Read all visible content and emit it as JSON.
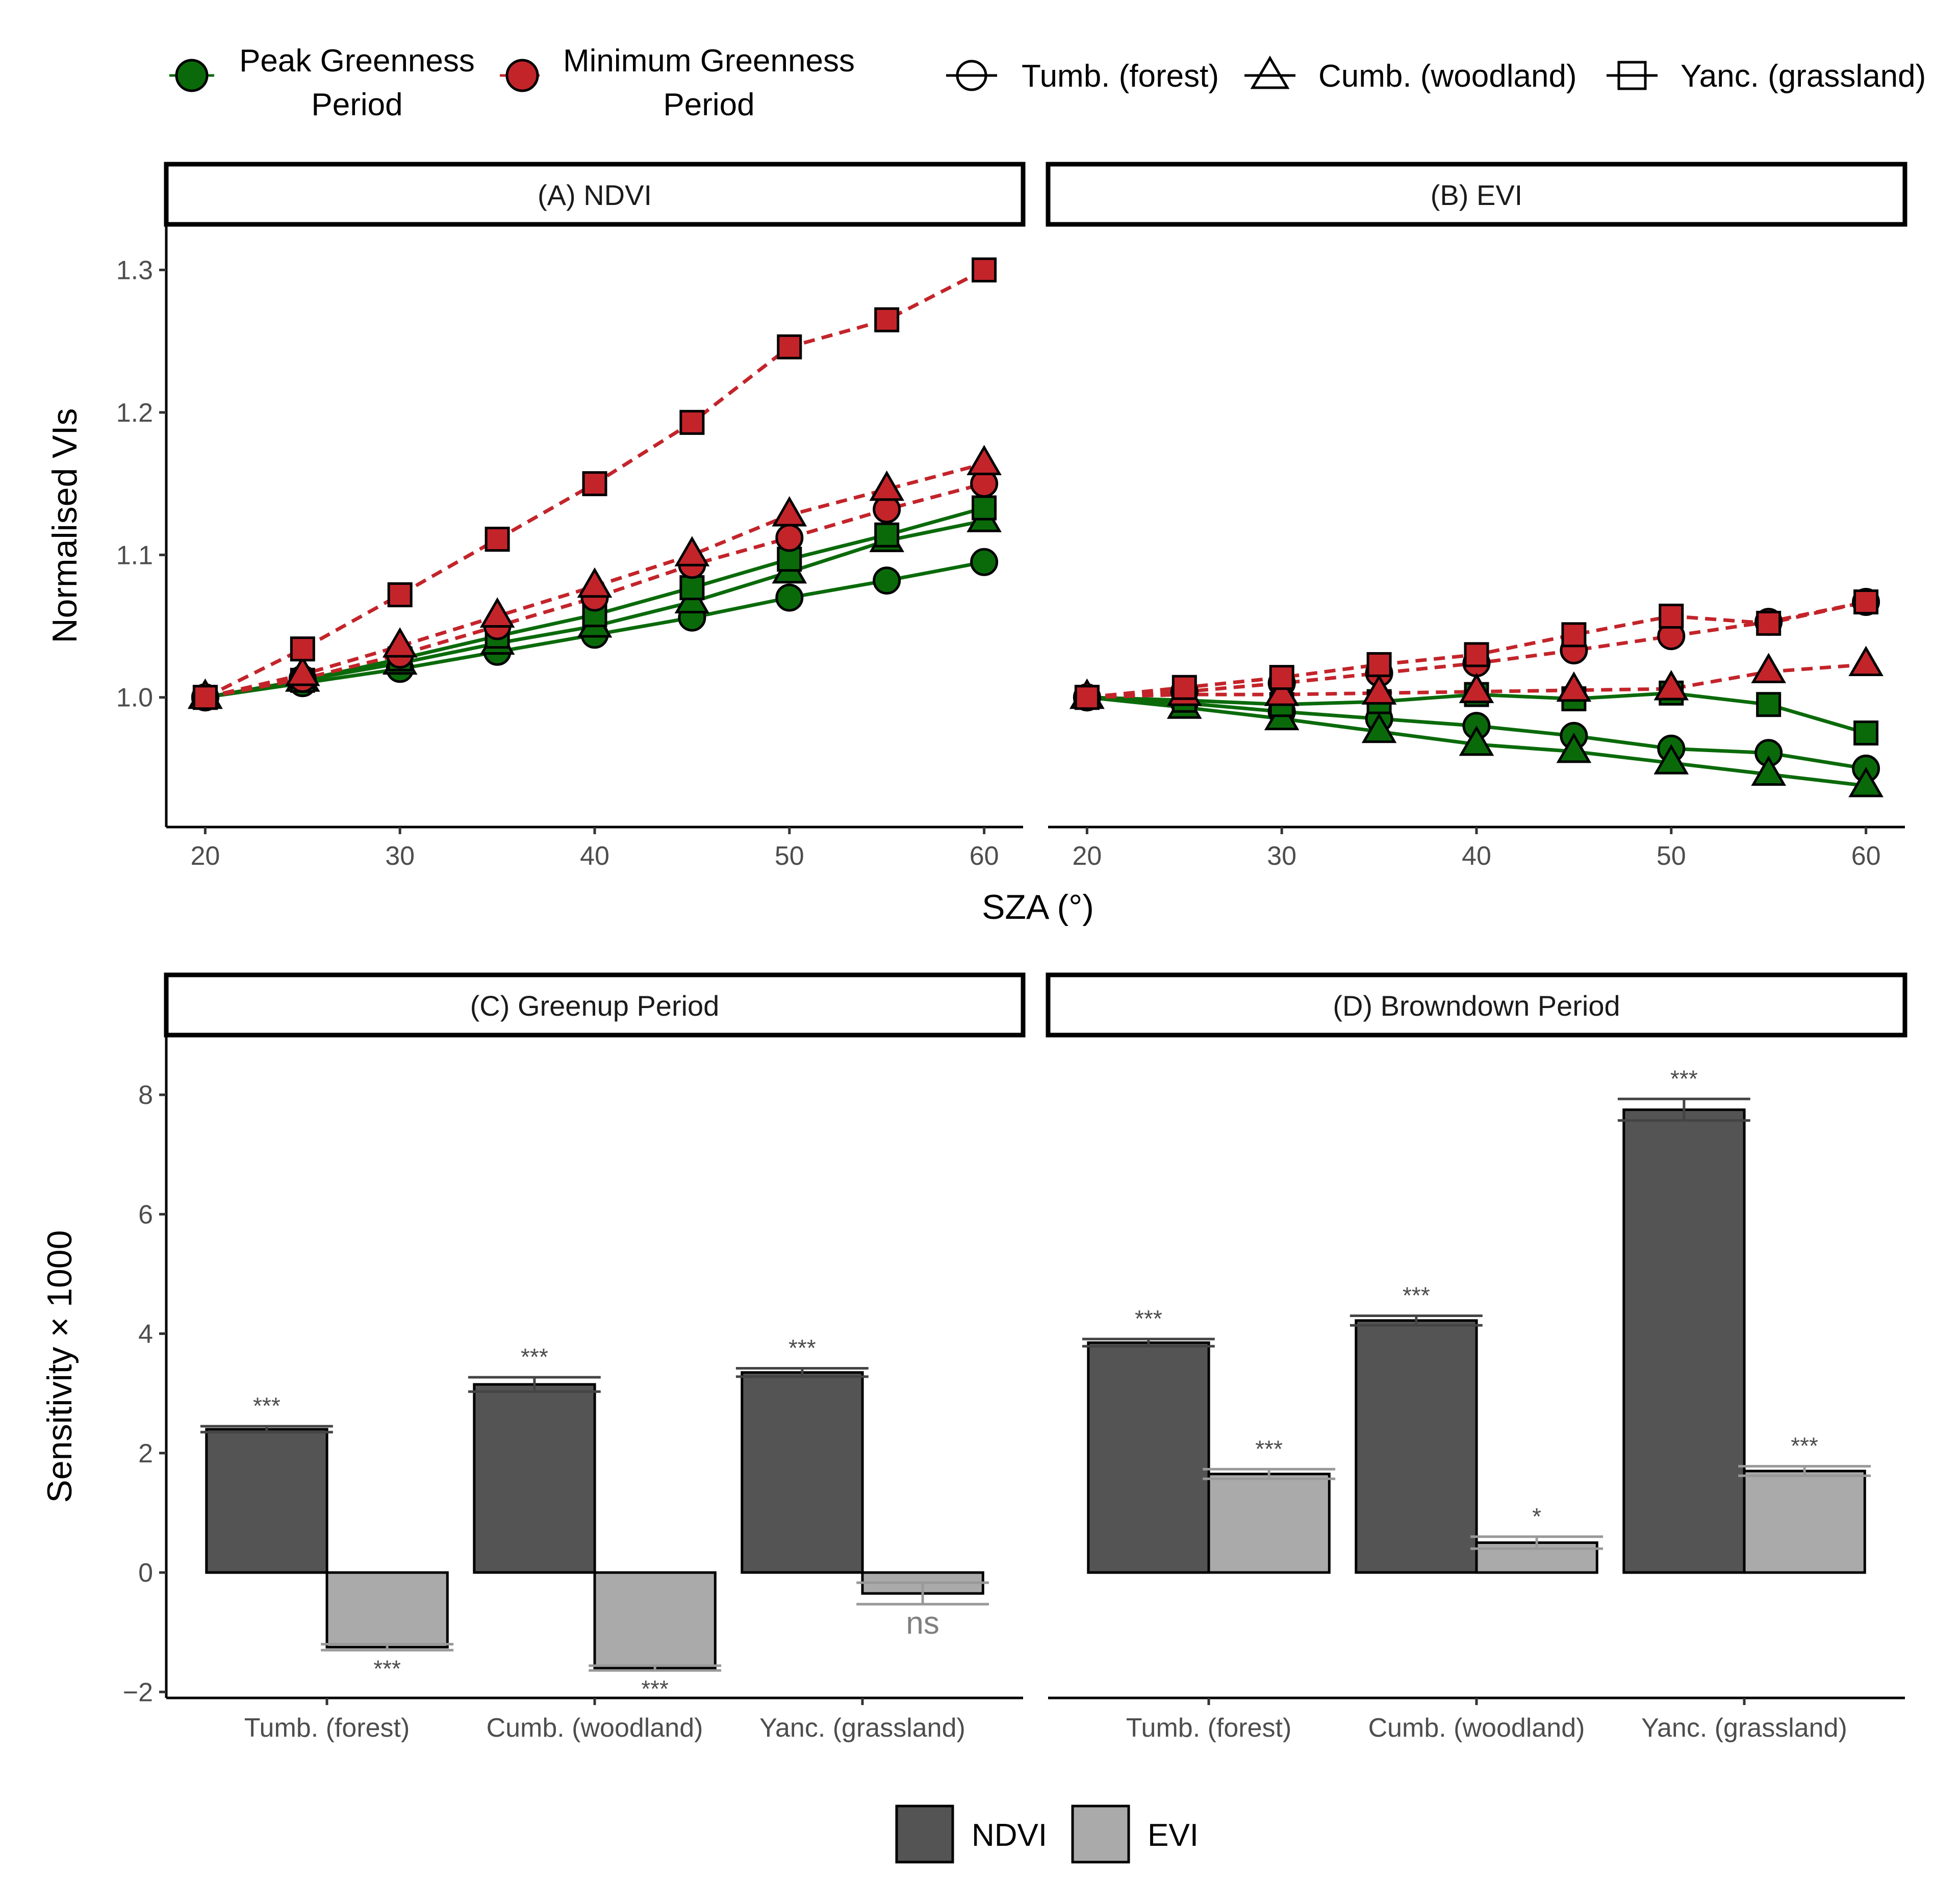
{
  "colors": {
    "peak": "#0a6a0a",
    "minimum": "#c3242a",
    "ndvi_bar": "#545454",
    "evi_bar": "#aaaaaa",
    "text": "#000000",
    "tick_text": "#4d4d4d"
  },
  "legend_top": {
    "period_items": [
      {
        "line1": "Peak Greenness",
        "line2": "Period",
        "series": "peak"
      },
      {
        "line1": "Minimum Greenness",
        "line2": "Period",
        "series": "minimum"
      }
    ],
    "site_items": [
      {
        "label": "Tumb. (forest)",
        "shape": "circle"
      },
      {
        "label": "Cumb. (woodland)",
        "shape": "triangle"
      },
      {
        "label": "Yanc. (grassland)",
        "shape": "square"
      }
    ]
  },
  "legend_bottom": {
    "items": [
      {
        "label": "NDVI",
        "series": "ndvi"
      },
      {
        "label": "EVI",
        "series": "evi"
      }
    ]
  },
  "chart_data": [
    {
      "type": "line",
      "panel": "A",
      "title": "(A) NDVI",
      "xlabel": "SZA (°)",
      "ylabel": "Normalised VIs",
      "xlim": [
        18,
        62
      ],
      "ylim": [
        0.909,
        1.332
      ],
      "xticks": [
        20,
        30,
        40,
        50,
        60
      ],
      "yticks": [
        1.0,
        1.1,
        1.2,
        1.3
      ],
      "ytick_labels": [
        "1.0",
        "1.1",
        "1.2",
        "1.3"
      ],
      "x": [
        20,
        25,
        30,
        35,
        40,
        45,
        50,
        55,
        60
      ],
      "series": [
        {
          "name": "Peak Greenness - Tumb. (forest)",
          "period": "peak",
          "site": "circle",
          "values": [
            1.0,
            1.01,
            1.02,
            1.032,
            1.044,
            1.056,
            1.07,
            1.082,
            1.095
          ]
        },
        {
          "name": "Peak Greenness - Cumb. (woodland)",
          "period": "peak",
          "site": "triangle",
          "values": [
            1.0,
            1.012,
            1.024,
            1.038,
            1.05,
            1.067,
            1.088,
            1.11,
            1.124
          ]
        },
        {
          "name": "Peak Greenness - Yanc. (grassland)",
          "period": "peak",
          "site": "square",
          "values": [
            1.0,
            1.012,
            1.027,
            1.043,
            1.058,
            1.077,
            1.097,
            1.114,
            1.133
          ]
        },
        {
          "name": "Minimum Greenness - Tumb. (forest)",
          "period": "minimum",
          "site": "circle",
          "values": [
            1.0,
            1.013,
            1.03,
            1.05,
            1.07,
            1.093,
            1.112,
            1.132,
            1.15
          ]
        },
        {
          "name": "Minimum Greenness - Cumb. (woodland)",
          "period": "minimum",
          "site": "triangle",
          "values": [
            1.0,
            1.016,
            1.036,
            1.057,
            1.078,
            1.1,
            1.128,
            1.146,
            1.164
          ]
        },
        {
          "name": "Minimum Greenness - Yanc. (grassland)",
          "period": "minimum",
          "site": "square",
          "values": [
            1.0,
            1.034,
            1.072,
            1.111,
            1.15,
            1.193,
            1.246,
            1.265,
            1.3
          ]
        }
      ]
    },
    {
      "type": "line",
      "panel": "B",
      "title": "(B) EVI",
      "xlabel": "SZA (°)",
      "ylabel": "Normalised VIs",
      "xlim": [
        18,
        62
      ],
      "ylim": [
        0.909,
        1.332
      ],
      "xticks": [
        20,
        30,
        40,
        50,
        60
      ],
      "yticks": [
        1.0,
        1.1,
        1.2,
        1.3
      ],
      "x": [
        20,
        25,
        30,
        35,
        40,
        45,
        50,
        55,
        60
      ],
      "series": [
        {
          "name": "Peak Greenness - Tumb. (forest)",
          "period": "peak",
          "site": "circle",
          "values": [
            1.0,
            0.996,
            0.99,
            0.985,
            0.98,
            0.973,
            0.964,
            0.961,
            0.95
          ]
        },
        {
          "name": "Peak Greenness - Cumb. (woodland)",
          "period": "peak",
          "site": "triangle",
          "values": [
            1.0,
            0.993,
            0.985,
            0.976,
            0.967,
            0.962,
            0.954,
            0.946,
            0.938
          ]
        },
        {
          "name": "Peak Greenness - Yanc. (grassland)",
          "period": "peak",
          "site": "square",
          "values": [
            1.0,
            0.998,
            0.995,
            0.997,
            1.002,
            0.999,
            1.003,
            0.995,
            0.975
          ]
        },
        {
          "name": "Minimum Greenness - Tumb. (forest)",
          "period": "minimum",
          "site": "circle",
          "values": [
            1.0,
            1.004,
            1.01,
            1.017,
            1.024,
            1.033,
            1.043,
            1.053,
            1.067
          ]
        },
        {
          "name": "Minimum Greenness - Cumb. (woodland)",
          "period": "minimum",
          "site": "triangle",
          "values": [
            1.0,
            1.002,
            1.002,
            1.003,
            1.004,
            1.005,
            1.006,
            1.018,
            1.023
          ]
        },
        {
          "name": "Minimum Greenness - Yanc. (grassland)",
          "period": "minimum",
          "site": "square",
          "values": [
            1.0,
            1.007,
            1.014,
            1.023,
            1.03,
            1.044,
            1.057,
            1.052,
            1.067
          ]
        }
      ]
    },
    {
      "type": "bar",
      "panel": "C",
      "title": "(C) Greenup Period",
      "ylabel": "Sensitivity × 1000",
      "ylim": [
        -2.1,
        9.0
      ],
      "yticks": [
        -2,
        0,
        2,
        4,
        6,
        8
      ],
      "ytick_labels": [
        "−2",
        "0",
        "2",
        "4",
        "6",
        "8"
      ],
      "categories": [
        "Tumb. (forest)",
        "Cumb. (woodland)",
        "Yanc. (grassland)"
      ],
      "series": [
        {
          "name": "NDVI",
          "values": [
            2.4,
            3.15,
            3.35
          ],
          "errors": [
            0.05,
            0.12,
            0.07
          ],
          "significance": [
            "***",
            "***",
            "***"
          ]
        },
        {
          "name": "EVI",
          "values": [
            -1.25,
            -1.6,
            -0.35
          ],
          "errors": [
            0.05,
            0.04,
            0.18
          ],
          "significance": [
            "***",
            "***",
            "ns"
          ]
        }
      ]
    },
    {
      "type": "bar",
      "panel": "D",
      "title": "(D) Browndown Period",
      "ylabel": "Sensitivity × 1000",
      "ylim": [
        -2.1,
        9.0
      ],
      "yticks": [
        -2,
        0,
        2,
        4,
        6,
        8
      ],
      "categories": [
        "Tumb. (forest)",
        "Cumb. (woodland)",
        "Yanc. (grassland)"
      ],
      "series": [
        {
          "name": "NDVI",
          "values": [
            3.85,
            4.22,
            7.75
          ],
          "errors": [
            0.06,
            0.08,
            0.18
          ],
          "significance": [
            "***",
            "***",
            "***"
          ]
        },
        {
          "name": "EVI",
          "values": [
            1.65,
            0.5,
            1.7
          ],
          "errors": [
            0.08,
            0.1,
            0.08
          ],
          "significance": [
            "***",
            "*",
            "***"
          ]
        }
      ]
    }
  ]
}
